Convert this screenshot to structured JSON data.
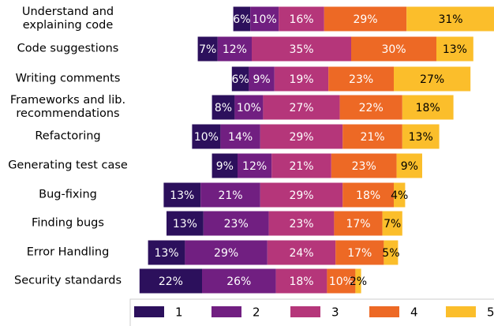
{
  "chart_data": {
    "type": "diverging_stacked_bar",
    "categories": [
      "Understand and\nexplaining code",
      "Code suggestions",
      "Writing comments",
      "Frameworks and lib.\nrecommendations",
      "Refactoring",
      "Generating test case",
      "Bug-fixing",
      "Finding bugs",
      "Error Handling",
      "Security standards"
    ],
    "series": [
      {
        "name": "1",
        "color": "#2c105c",
        "values": [
          6,
          7,
          6,
          8,
          10,
          9,
          13,
          13,
          13,
          22
        ],
        "value_labels": [
          "6%",
          "7%",
          "6%",
          "8%",
          "10%",
          "9%",
          "13%",
          "13%",
          "13%",
          "22%"
        ]
      },
      {
        "name": "2",
        "color": "#711f81",
        "values": [
          10,
          12,
          9,
          10,
          14,
          12,
          21,
          23,
          29,
          26
        ],
        "value_labels": [
          "10%",
          "12%",
          "9%",
          "10%",
          "14%",
          "12%",
          "21%",
          "23%",
          "29%",
          "26%"
        ]
      },
      {
        "name": "3",
        "color": "#b5367a",
        "values": [
          16,
          35,
          19,
          27,
          29,
          21,
          29,
          23,
          24,
          18
        ],
        "value_labels": [
          "16%",
          "35%",
          "19%",
          "27%",
          "29%",
          "21%",
          "29%",
          "23%",
          "24%",
          "18%"
        ]
      },
      {
        "name": "4",
        "color": "#ed6925",
        "values": [
          29,
          30,
          23,
          22,
          21,
          23,
          18,
          17,
          17,
          10
        ],
        "value_labels": [
          "29%",
          "30%",
          "23%",
          "22%",
          "21%",
          "23%",
          "18%",
          "17%",
          "17%",
          "10%"
        ]
      },
      {
        "name": "5",
        "color": "#fbbe2b",
        "values": [
          31,
          13,
          27,
          18,
          13,
          9,
          4,
          7,
          5,
          2
        ],
        "value_labels": [
          "31%",
          "13%",
          "27%",
          "18%",
          "13%",
          "9%",
          "4%",
          "7%",
          "5%",
          "2%"
        ]
      }
    ]
  }
}
